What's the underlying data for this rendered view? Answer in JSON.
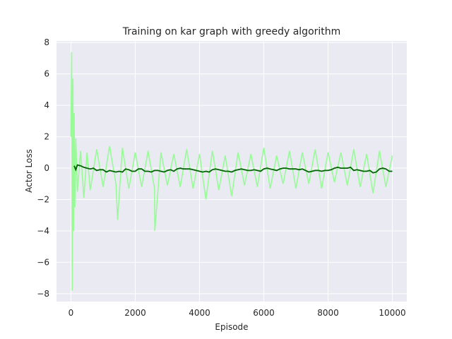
{
  "chart_data": {
    "type": "line",
    "title": "Training on kar graph with greedy algorithm",
    "xlabel": "Episode",
    "ylabel": "Actor Loss",
    "xlim": [
      -450,
      10450
    ],
    "ylim": [
      -8.5,
      8.1
    ],
    "x_ticks": [
      0,
      2000,
      4000,
      6000,
      8000,
      10000
    ],
    "y_ticks": [
      -8,
      -6,
      -4,
      -2,
      0,
      2,
      4,
      6,
      8
    ],
    "grid": true,
    "background": "#eaeaf2",
    "series": [
      {
        "role": "raw",
        "color": "#98fb98",
        "x": [
          0,
          20,
          40,
          60,
          80,
          100,
          120,
          150,
          200,
          300,
          400,
          500,
          600,
          800,
          1000,
          1200,
          1400,
          1450,
          1600,
          1800,
          2000,
          2200,
          2400,
          2600,
          2610,
          2800,
          3000,
          3200,
          3400,
          3600,
          3800,
          4000,
          4200,
          4400,
          4600,
          4800,
          5000,
          5200,
          5400,
          5600,
          5800,
          6000,
          6200,
          6400,
          6600,
          6800,
          7000,
          7200,
          7400,
          7600,
          7800,
          8000,
          8200,
          8400,
          8600,
          8800,
          9000,
          9200,
          9400,
          9600,
          9800,
          10000
        ],
        "y": [
          2.0,
          7.4,
          -7.8,
          5.7,
          -4.0,
          3.5,
          -2.5,
          1.9,
          -1.5,
          1.1,
          -1.9,
          1.0,
          -1.4,
          1.2,
          -1.2,
          1.4,
          -1.0,
          -3.3,
          1.3,
          -1.3,
          1.0,
          -1.2,
          1.1,
          -1.3,
          -4.0,
          1.0,
          -1.1,
          0.9,
          -1.2,
          1.2,
          -1.3,
          0.9,
          -2.0,
          1.1,
          -1.4,
          0.8,
          -1.8,
          1.0,
          -1.1,
          0.9,
          -1.2,
          1.3,
          -1.3,
          0.8,
          -1.0,
          1.1,
          -1.3,
          1.0,
          -1.0,
          1.2,
          -1.3,
          1.0,
          -0.9,
          1.0,
          -1.1,
          1.2,
          -1.2,
          0.9,
          -1.6,
          1.1,
          -1.2,
          0.8
        ]
      },
      {
        "role": "smoothed",
        "color": "#006400",
        "x": [
          100,
          150,
          200,
          300,
          400,
          500,
          600,
          700,
          800,
          900,
          1000,
          1100,
          1200,
          1300,
          1400,
          1500,
          1600,
          1700,
          1800,
          1900,
          2000,
          2100,
          2200,
          2300,
          2400,
          2500,
          2600,
          2700,
          2800,
          2900,
          3000,
          3100,
          3200,
          3300,
          3400,
          3500,
          3600,
          3700,
          3800,
          3900,
          4000,
          4100,
          4200,
          4300,
          4400,
          4500,
          4600,
          4700,
          4800,
          4900,
          5000,
          5100,
          5200,
          5300,
          5400,
          5500,
          5600,
          5700,
          5800,
          5900,
          6000,
          6100,
          6200,
          6300,
          6400,
          6500,
          6600,
          6700,
          6800,
          6900,
          7000,
          7100,
          7200,
          7300,
          7400,
          7500,
          7600,
          7700,
          7800,
          7900,
          8000,
          8100,
          8200,
          8300,
          8400,
          8500,
          8600,
          8700,
          8800,
          8900,
          9000,
          9100,
          9200,
          9300,
          9400,
          9500,
          9600,
          9700,
          9800,
          9900,
          10000
        ],
        "y": [
          0.15,
          -0.1,
          0.2,
          0.15,
          0.05,
          0.0,
          -0.05,
          0.0,
          -0.15,
          -0.1,
          -0.1,
          -0.25,
          -0.15,
          -0.2,
          -0.25,
          -0.2,
          -0.25,
          -0.05,
          -0.1,
          -0.2,
          -0.2,
          -0.05,
          -0.05,
          -0.2,
          -0.2,
          -0.25,
          -0.15,
          -0.15,
          -0.2,
          -0.25,
          -0.15,
          -0.1,
          -0.2,
          -0.05,
          0.0,
          -0.05,
          -0.05,
          -0.05,
          -0.1,
          -0.15,
          -0.2,
          -0.25,
          -0.2,
          -0.25,
          -0.1,
          -0.05,
          -0.1,
          -0.15,
          -0.2,
          -0.2,
          -0.25,
          -0.15,
          -0.1,
          -0.05,
          -0.1,
          -0.15,
          -0.15,
          -0.1,
          -0.15,
          -0.2,
          -0.05,
          0.0,
          -0.05,
          -0.1,
          -0.15,
          -0.05,
          0.0,
          0.0,
          -0.05,
          -0.05,
          -0.05,
          -0.1,
          -0.05,
          -0.15,
          -0.25,
          -0.2,
          -0.15,
          -0.15,
          -0.2,
          -0.15,
          -0.15,
          -0.1,
          0.0,
          0.05,
          0.0,
          0.0,
          0.0,
          0.05,
          -0.15,
          -0.1,
          -0.15,
          -0.2,
          -0.2,
          -0.15,
          -0.3,
          -0.25,
          -0.05,
          0.0,
          -0.05,
          -0.2,
          -0.2
        ]
      }
    ]
  }
}
